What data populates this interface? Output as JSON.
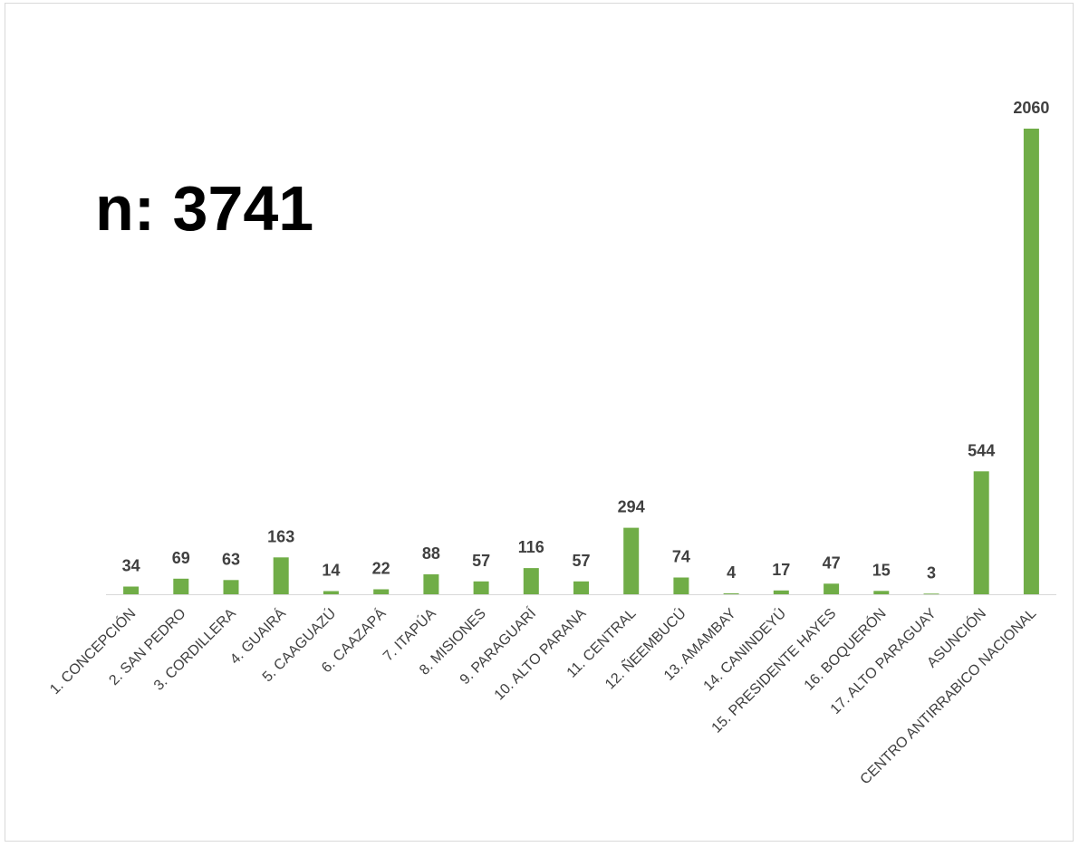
{
  "annotation": "n: 3741",
  "chart_data": {
    "type": "bar",
    "title": "",
    "xlabel": "",
    "ylabel": "",
    "ylim": [
      0,
      2200
    ],
    "grid": false,
    "legend": "none",
    "bar_color": "#70AD47",
    "label_color": "#404040",
    "categories": [
      "1. CONCEPCIÓN",
      "2. SAN PEDRO",
      "3. CORDILLERA",
      "4. GUAIRÁ",
      "5. CAAGUAZÚ",
      "6. CAAZAPÁ",
      "7. ITAPÚA",
      "8. MISIONES",
      "9. PARAGUARÍ",
      "10. ALTO PARANA",
      "11. CENTRAL",
      "12. ÑEEMBUCÚ",
      "13. AMAMBAY",
      "14. CANINDEYÚ",
      "15. PRESIDENTE HAYES",
      "16. BOQUERÓN",
      "17. ALTO PARAGUAY",
      "ASUNCIÓN",
      "CENTRO ANTIRRABICO NACIONAL"
    ],
    "values": [
      34,
      69,
      63,
      163,
      14,
      22,
      88,
      57,
      116,
      57,
      294,
      74,
      4,
      17,
      47,
      15,
      3,
      544,
      2060
    ]
  }
}
